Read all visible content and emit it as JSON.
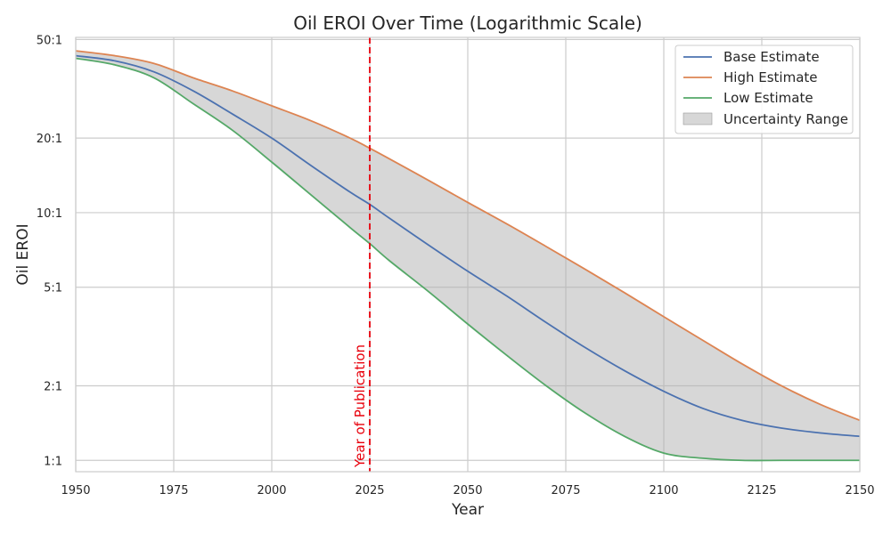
{
  "chart_data": {
    "type": "line",
    "title": "Oil EROI Over Time (Logarithmic Scale)",
    "xlabel": "Year",
    "ylabel": "Oil EROI",
    "xlim": [
      1950,
      2150
    ],
    "ylim": [
      0.9,
      51
    ],
    "y_scale": "log",
    "grid": true,
    "legend_position": "top-right",
    "x_ticks": [
      1950,
      1975,
      2000,
      2025,
      2050,
      2075,
      2100,
      2125,
      2150
    ],
    "x_tick_labels": [
      "1950",
      "1975",
      "2000",
      "2025",
      "2050",
      "2075",
      "2100",
      "2125",
      "2150"
    ],
    "y_ticks": [
      1,
      2,
      5,
      10,
      20,
      50
    ],
    "y_tick_labels": [
      "1:1",
      "2:1",
      "5:1",
      "10:1",
      "20:1",
      "50:1"
    ],
    "x": [
      1950,
      1960,
      1970,
      1980,
      1990,
      2000,
      2010,
      2020,
      2025,
      2030,
      2040,
      2050,
      2060,
      2070,
      2080,
      2090,
      2100,
      2110,
      2120,
      2130,
      2140,
      2150
    ],
    "series": [
      {
        "name": "Base Estimate",
        "color": "#4c72b0",
        "values": [
          43,
          41,
          37,
          31,
          25,
          20,
          15.5,
          12.1,
          10.8,
          9.5,
          7.4,
          5.8,
          4.6,
          3.6,
          2.85,
          2.3,
          1.9,
          1.62,
          1.45,
          1.35,
          1.29,
          1.25
        ]
      },
      {
        "name": "High Estimate",
        "color": "#dd8452",
        "values": [
          45,
          43,
          40,
          35,
          31,
          27,
          23.5,
          20,
          18.2,
          16.5,
          13.5,
          11,
          9,
          7.3,
          5.9,
          4.75,
          3.8,
          3.05,
          2.45,
          2.0,
          1.68,
          1.45
        ]
      },
      {
        "name": "Low Estimate",
        "color": "#55a868",
        "values": [
          42,
          39.5,
          35,
          27.5,
          21.5,
          16,
          11.8,
          8.7,
          7.5,
          6.4,
          4.8,
          3.55,
          2.65,
          2.0,
          1.55,
          1.25,
          1.07,
          1.02,
          1.0,
          1.0,
          1.0,
          1.0
        ]
      }
    ],
    "band": {
      "name": "Uncertainty Range",
      "color": "#b0b0b0"
    },
    "annotation": {
      "x": 2025,
      "label": "Year of Publication",
      "color": "#e8000b"
    }
  }
}
